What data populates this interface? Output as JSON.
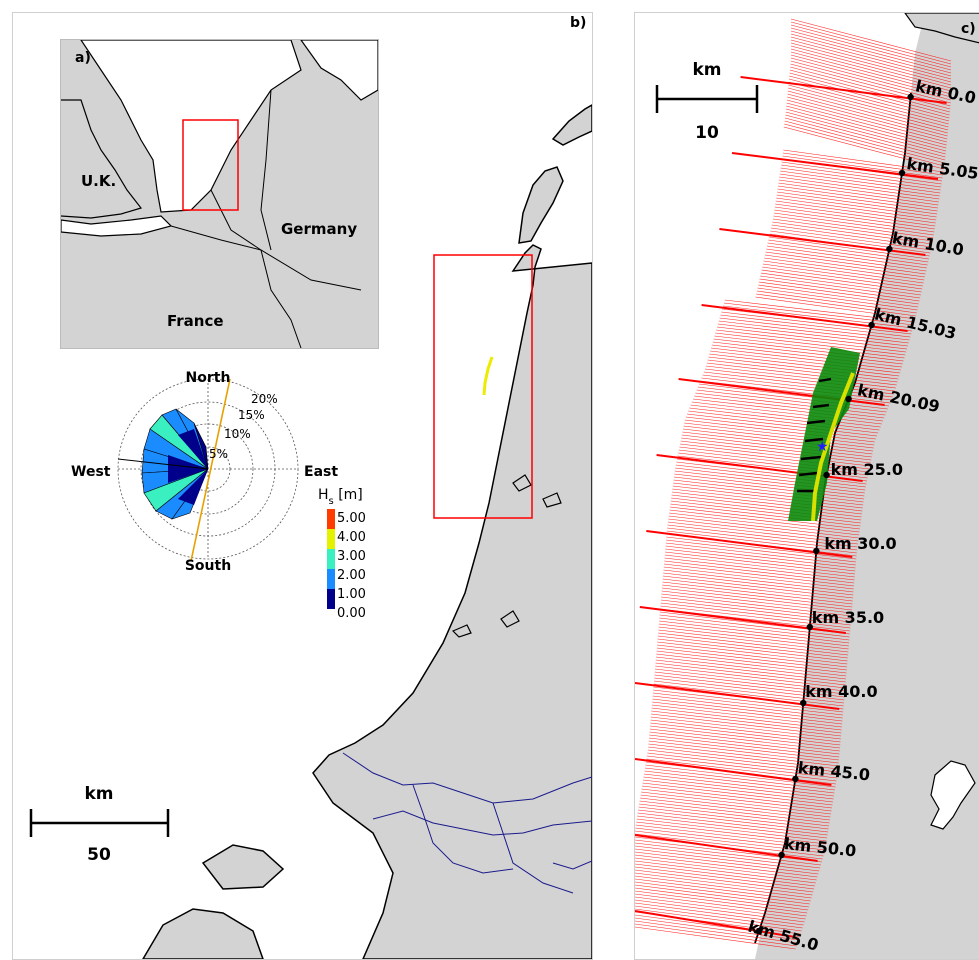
{
  "panel_b": {
    "label": "b)",
    "scalebar": {
      "unit": "km",
      "value": "50"
    }
  },
  "panel_a": {
    "label": "a)",
    "countries": {
      "uk": "U.K.",
      "germany": "Germany",
      "france": "France"
    }
  },
  "wave_rose": {
    "directions": {
      "north": "North",
      "south": "South",
      "east": "East",
      "west": "West"
    },
    "rings": [
      "5%",
      "10%",
      "15%",
      "20%"
    ],
    "legend_title_main": "H",
    "legend_title_sub": "s",
    "legend_title_unit": " [m]",
    "legend_items": [
      {
        "label": "5.00",
        "color": "#ff3b00"
      },
      {
        "label": "4.00",
        "color": "#e4f200"
      },
      {
        "label": "3.00",
        "color": "#3bf0c0"
      },
      {
        "label": "2.00",
        "color": "#1a8cff"
      },
      {
        "label": "1.00",
        "color": "#00008b"
      },
      {
        "label": "0.00",
        "color": "#00008b"
      }
    ]
  },
  "panel_c": {
    "label": "c)",
    "scalebar": {
      "unit": "km",
      "value": "10"
    },
    "km_labels": [
      "km 0.0",
      "km 5.05",
      "km 10.0",
      "km 15.03",
      "km 20.09",
      "km 25.0",
      "km 30.0",
      "km 35.0",
      "km 40.0",
      "km 45.0",
      "km 50.0",
      "km 55.0"
    ]
  },
  "colors": {
    "land": "#d3d3d3",
    "sea": "#ffffff",
    "coastline": "#000000",
    "rivers": "#1a1a8c",
    "transects": "#ff0000",
    "nourishment": "#ecec00",
    "grid": "#008000"
  }
}
